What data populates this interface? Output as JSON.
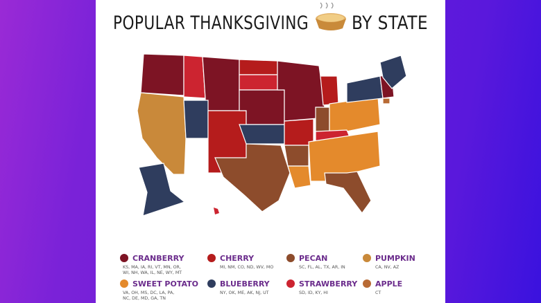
{
  "header": {
    "title_before": "POPULAR THANKSGIVING",
    "title_after": "BY STATE"
  },
  "legend": [
    {
      "name": "CRANBERRY",
      "states": [
        "KS, MA, IA, RI, VT, MN, OR,",
        "WI, NH, WA, IL, NE, WY, MT"
      ]
    },
    {
      "name": "CHERRY",
      "states": [
        "MI, NM, CO, ND, WV, MO"
      ]
    },
    {
      "name": "PECAN",
      "states": [
        "SC, FL, AL, TX, AR, IN"
      ]
    },
    {
      "name": "PUMPKIN",
      "states": [
        "CA, NV, AZ"
      ]
    },
    {
      "name": "SWEET POTATO",
      "states": [
        "VA, OH, MS, DC, LA, PA,",
        "NC, DE, MD, GA, TN"
      ]
    },
    {
      "name": "BLUEBERRY",
      "states": [
        "NY, OK, ME, AK, NJ, UT"
      ]
    },
    {
      "name": "STRAWBERRY",
      "states": [
        "SD, ID, KY, HI"
      ]
    },
    {
      "name": "APPLE",
      "states": [
        "CT"
      ]
    }
  ]
}
